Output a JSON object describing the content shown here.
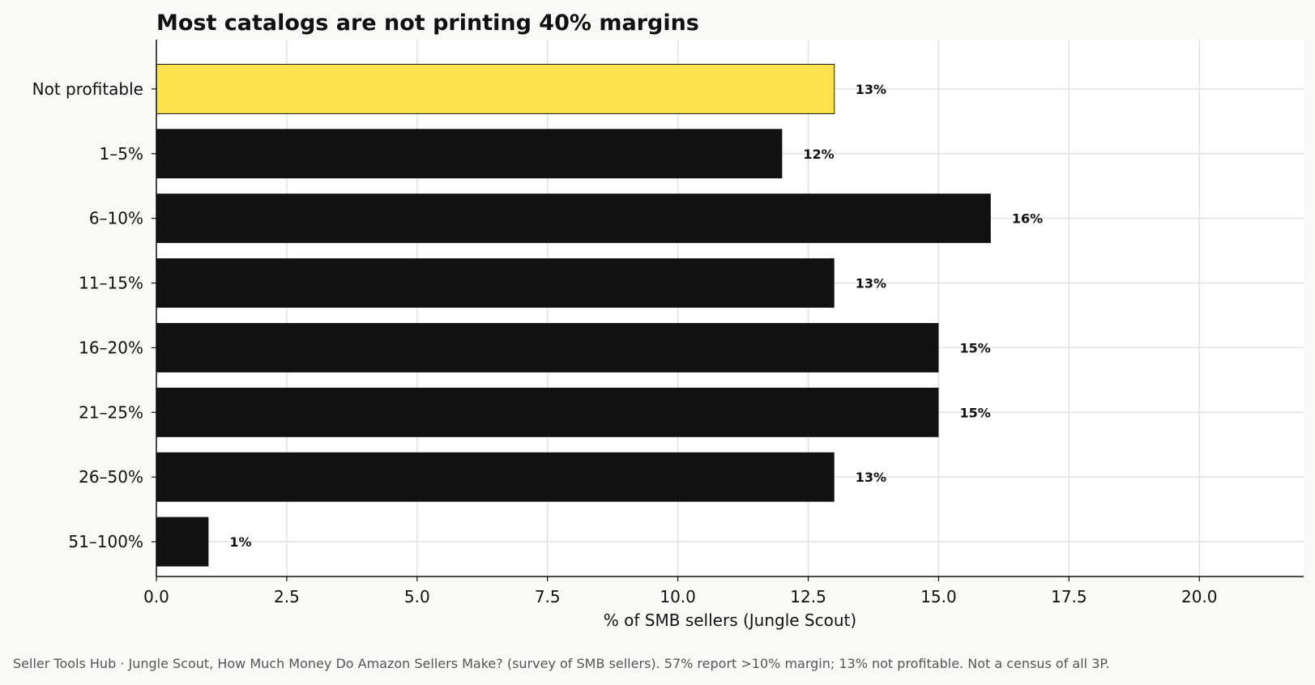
{
  "footer": {
    "note": "Seller Tools Hub  ·  Jungle Scout, How Much Money Do Amazon Sellers Make? (survey of SMB sellers). 57% report >10% margin; 13% not profitable. Not a census of all 3P."
  },
  "chart_data": {
    "type": "bar",
    "orientation": "horizontal",
    "title": "Most catalogs are not printing 40% margins",
    "xlabel": "% of SMB sellers (Jungle Scout)",
    "ylabel": "",
    "categories": [
      "Not profitable",
      "1–5%",
      "6–10%",
      "11–15%",
      "16–20%",
      "21–25%",
      "26–50%",
      "51–100%"
    ],
    "values": [
      13,
      12,
      16,
      13,
      15,
      15,
      13,
      1
    ],
    "value_labels": [
      "13%",
      "12%",
      "16%",
      "13%",
      "15%",
      "15%",
      "13%",
      "1%"
    ],
    "highlight_index": 0,
    "xlim": [
      0,
      22
    ],
    "xticks": [
      0,
      2.5,
      5,
      7.5,
      10,
      12.5,
      15,
      17.5,
      20
    ],
    "xtick_labels": [
      "0.0",
      "2.5",
      "5.0",
      "7.5",
      "10.0",
      "12.5",
      "15.0",
      "17.5",
      "20.0"
    ],
    "grid": true,
    "colors": {
      "bar": "#111111",
      "highlight": "#ffe34d",
      "grid": "#e3e2de",
      "plot_background": "#ffffff",
      "page_background": "#f9f9f7"
    }
  }
}
